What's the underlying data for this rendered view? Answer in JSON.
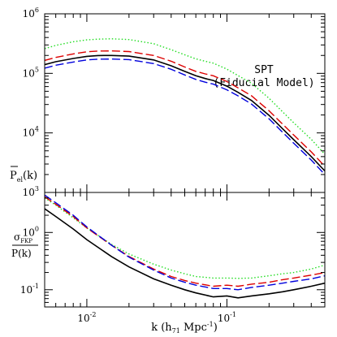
{
  "chart_data": [
    {
      "type": "line",
      "log_x": true,
      "log_y": true,
      "xlim": [
        0.005,
        0.5
      ],
      "ylim": [
        1000,
        1000000
      ],
      "y_tick_labels": [
        "10",
        "10",
        "10",
        "10"
      ],
      "y_tick_exponents": [
        "3",
        "4",
        "5",
        "6"
      ],
      "ylabel_main": "P",
      "ylabel_sub": "el",
      "ylabel_tail": "(k)",
      "annotation_line1": "SPT",
      "annotation_line2": "(Fiducial Model)",
      "series": [
        {
          "color": "#22dd22",
          "dash": "dotted",
          "x": [
            0.005,
            0.006,
            0.008,
            0.01,
            0.012,
            0.015,
            0.02,
            0.03,
            0.04,
            0.05,
            0.06,
            0.07,
            0.08,
            0.1,
            0.12,
            0.15,
            0.2,
            0.25,
            0.3,
            0.4,
            0.5
          ],
          "values": [
            260000,
            295000,
            340000,
            365000,
            375000,
            380000,
            370000,
            315000,
            250000,
            205000,
            175000,
            160000,
            148000,
            118000,
            92000,
            68000,
            38000,
            22500,
            14800,
            7800,
            4400
          ]
        },
        {
          "color": "#dd0000",
          "dash": "dashed",
          "x": [
            0.005,
            0.006,
            0.008,
            0.01,
            0.012,
            0.015,
            0.02,
            0.03,
            0.04,
            0.05,
            0.06,
            0.07,
            0.08,
            0.1,
            0.12,
            0.15,
            0.2,
            0.25,
            0.3,
            0.4,
            0.5
          ],
          "values": [
            165000,
            185000,
            212000,
            230000,
            237000,
            238000,
            232000,
            200000,
            160000,
            128000,
            108000,
            98000,
            91000,
            73000,
            57000,
            42000,
            23500,
            14000,
            9200,
            4800,
            2750
          ]
        },
        {
          "color": "#000000",
          "dash": "solid",
          "x": [
            0.005,
            0.006,
            0.008,
            0.01,
            0.012,
            0.015,
            0.02,
            0.03,
            0.04,
            0.05,
            0.06,
            0.07,
            0.08,
            0.1,
            0.12,
            0.15,
            0.2,
            0.25,
            0.3,
            0.4,
            0.5
          ],
          "values": [
            140000,
            157000,
            178000,
            193000,
            199000,
            200000,
            195000,
            168000,
            134000,
            108000,
            91000,
            82000,
            76000,
            61000,
            48000,
            35000,
            19700,
            11700,
            7700,
            4000,
            2300
          ]
        },
        {
          "color": "#0000dd",
          "dash": "dashed",
          "x": [
            0.005,
            0.006,
            0.008,
            0.01,
            0.012,
            0.015,
            0.02,
            0.03,
            0.04,
            0.05,
            0.06,
            0.07,
            0.08,
            0.1,
            0.12,
            0.15,
            0.2,
            0.25,
            0.3,
            0.4,
            0.5
          ],
          "values": [
            122000,
            137000,
            155000,
            168000,
            173000,
            174000,
            170000,
            146000,
            117000,
            94000,
            79000,
            71000,
            66000,
            53000,
            42000,
            30500,
            17200,
            10200,
            6700,
            3500,
            2000
          ]
        }
      ]
    },
    {
      "type": "line",
      "log_x": true,
      "log_y": true,
      "xlim": [
        0.005,
        0.5
      ],
      "ylim": [
        0.05,
        5
      ],
      "x_tick_labels": [
        "10",
        "10"
      ],
      "x_tick_exponents": [
        "-2",
        "-1"
      ],
      "y_tick_labels": [
        "10",
        "10"
      ],
      "y_tick_exponents": [
        "0",
        "-1"
      ],
      "xlabel_pre": "k (h",
      "xlabel_sub": "71",
      "xlabel_mid": " Mpc",
      "xlabel_sup": "-1",
      "xlabel_post": ")",
      "ylabel_numer": "σ",
      "ylabel_numer_sub": "FKP",
      "ylabel_denom": "P(k)",
      "series": [
        {
          "color": "#22dd22",
          "dash": "dotted",
          "x": [
            0.005,
            0.006,
            0.008,
            0.01,
            0.015,
            0.02,
            0.03,
            0.04,
            0.05,
            0.06,
            0.08,
            0.1,
            0.12,
            0.15,
            0.2,
            0.25,
            0.3,
            0.4,
            0.5
          ],
          "values": [
            4.0,
            3.0,
            1.8,
            1.2,
            0.62,
            0.42,
            0.28,
            0.22,
            0.19,
            0.17,
            0.16,
            0.16,
            0.158,
            0.16,
            0.175,
            0.19,
            0.2,
            0.23,
            0.27
          ]
        },
        {
          "color": "#dd0000",
          "dash": "dashed",
          "x": [
            0.005,
            0.006,
            0.008,
            0.01,
            0.015,
            0.02,
            0.03,
            0.04,
            0.05,
            0.06,
            0.08,
            0.1,
            0.12,
            0.15,
            0.2,
            0.25,
            0.3,
            0.4,
            0.5
          ],
          "values": [
            4.2,
            3.1,
            1.9,
            1.2,
            0.6,
            0.38,
            0.23,
            0.17,
            0.145,
            0.13,
            0.115,
            0.12,
            0.115,
            0.125,
            0.135,
            0.15,
            0.16,
            0.18,
            0.2
          ]
        },
        {
          "color": "#0000dd",
          "dash": "dashed",
          "x": [
            0.005,
            0.006,
            0.008,
            0.01,
            0.015,
            0.02,
            0.03,
            0.04,
            0.05,
            0.06,
            0.08,
            0.1,
            0.12,
            0.15,
            0.2,
            0.25,
            0.3,
            0.4,
            0.5
          ],
          "values": [
            4.5,
            3.3,
            2.0,
            1.25,
            0.6,
            0.37,
            0.22,
            0.16,
            0.135,
            0.12,
            0.105,
            0.105,
            0.1,
            0.11,
            0.12,
            0.13,
            0.14,
            0.155,
            0.175
          ]
        },
        {
          "color": "#000000",
          "dash": "solid",
          "x": [
            0.005,
            0.006,
            0.008,
            0.01,
            0.015,
            0.02,
            0.03,
            0.04,
            0.05,
            0.06,
            0.08,
            0.1,
            0.12,
            0.15,
            0.2,
            0.25,
            0.3,
            0.4,
            0.5
          ],
          "values": [
            2.6,
            1.9,
            1.15,
            0.75,
            0.38,
            0.25,
            0.155,
            0.12,
            0.1,
            0.088,
            0.075,
            0.078,
            0.072,
            0.078,
            0.085,
            0.092,
            0.1,
            0.115,
            0.13
          ]
        }
      ]
    }
  ]
}
